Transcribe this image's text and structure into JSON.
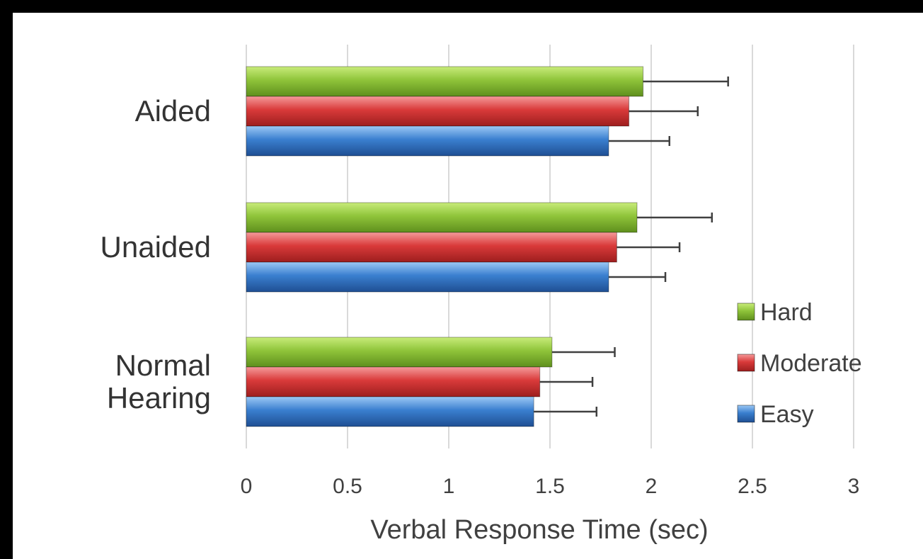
{
  "chart_data": {
    "type": "bar",
    "orientation": "horizontal",
    "categories": [
      "Aided",
      "Unaided",
      "Normal Hearing"
    ],
    "series": [
      {
        "name": "Hard",
        "color": "#8fc43a",
        "values": [
          1.96,
          1.93,
          1.51
        ],
        "errors": [
          0.42,
          0.37,
          0.31
        ]
      },
      {
        "name": "Moderate",
        "color": "#d93a3a",
        "values": [
          1.89,
          1.83,
          1.45
        ],
        "errors": [
          0.34,
          0.31,
          0.26
        ]
      },
      {
        "name": "Easy",
        "color": "#3a7fcf",
        "values": [
          1.79,
          1.79,
          1.42
        ],
        "errors": [
          0.3,
          0.28,
          0.31
        ]
      }
    ],
    "xlabel": "Verbal Response Time (sec)",
    "ylabel": "",
    "xlim": [
      0,
      3
    ],
    "xticks": [
      "0",
      "0.5",
      "1",
      "1.5",
      "2",
      "2.5",
      "3"
    ],
    "grid": "vertical",
    "legend_position": "right"
  }
}
